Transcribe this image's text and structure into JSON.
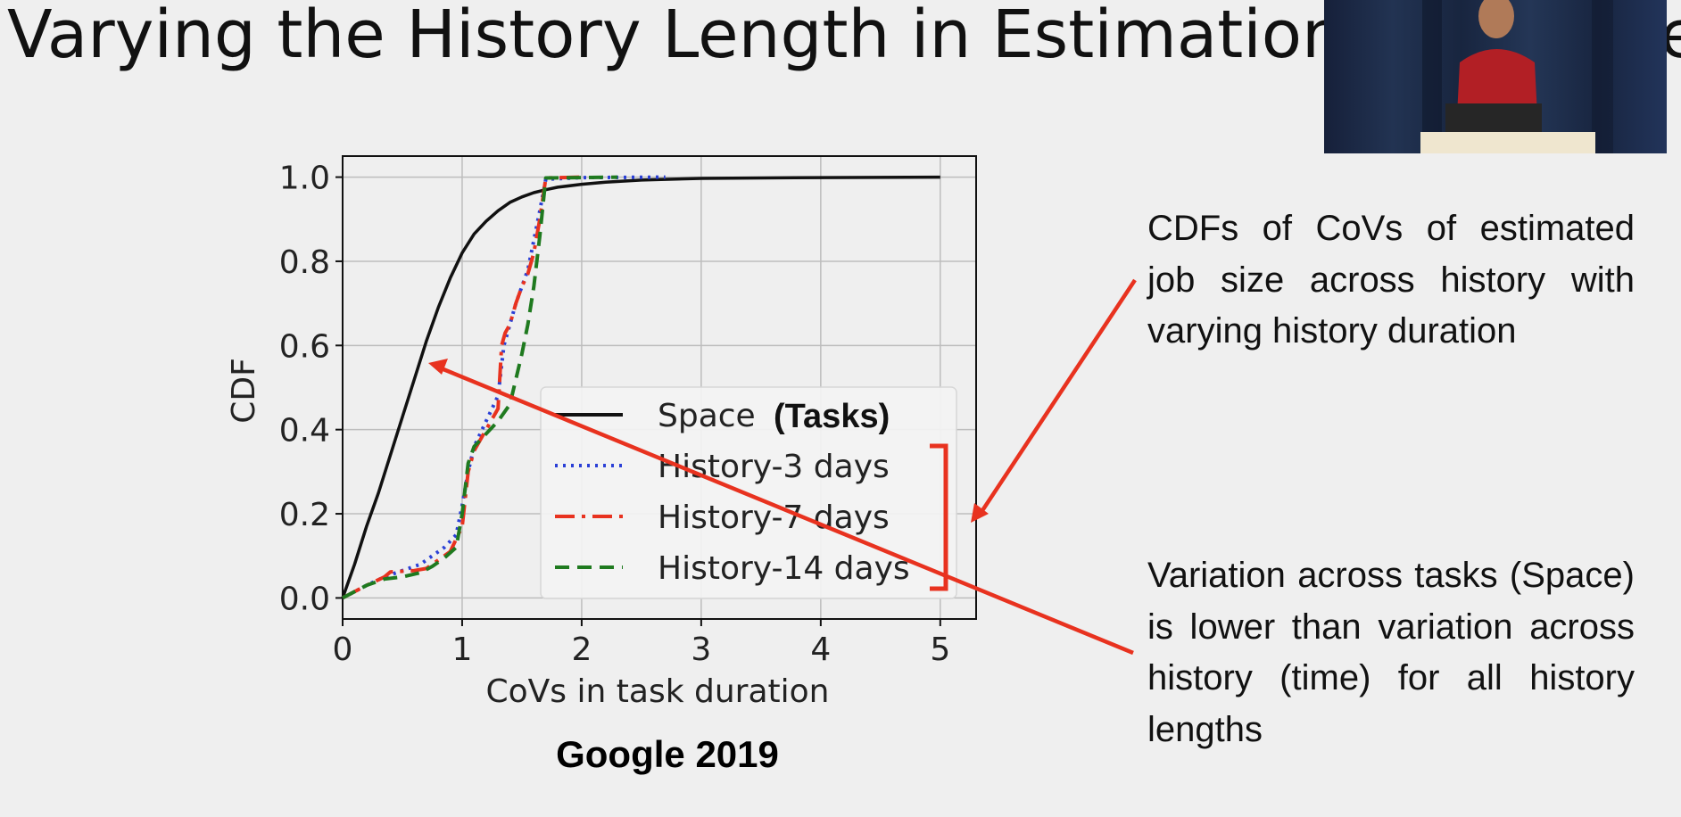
{
  "slide": {
    "title": "Varying the History Length in Estimation a",
    "title_trailing": "e",
    "caption_top": "CDFs of CoVs  of estimated job size across history with varying history duration",
    "caption_bottom": "Variation across tasks (Space) is lower than variation across history (time) for all history lengths",
    "chart_subtitle": "Google 2019",
    "annotation_color": "#e8321f",
    "background_color": "#efefef"
  },
  "chart_data": {
    "type": "line",
    "xlabel": "CoVs in task duration",
    "ylabel": "CDF",
    "xlim": [
      0,
      5.3
    ],
    "ylim": [
      -0.05,
      1.05
    ],
    "xticks": [
      0,
      1,
      2,
      3,
      4,
      5
    ],
    "yticks": [
      0.0,
      0.2,
      0.4,
      0.6,
      0.8,
      1.0
    ],
    "xtick_labels": [
      "0",
      "1",
      "2",
      "3",
      "4",
      "5"
    ],
    "ytick_labels": [
      "0.0",
      "0.2",
      "0.4",
      "0.6",
      "0.8",
      "1.0"
    ],
    "grid": true,
    "legend_position": "lower-right",
    "series": [
      {
        "name": "Space",
        "legend_suffix": "(Tasks)",
        "color": "#111111",
        "style": "solid",
        "x": [
          0,
          0.1,
          0.2,
          0.3,
          0.4,
          0.5,
          0.6,
          0.7,
          0.8,
          0.9,
          1.0,
          1.1,
          1.2,
          1.3,
          1.4,
          1.5,
          1.6,
          1.7,
          1.8,
          2.0,
          2.2,
          2.5,
          3.0,
          4.0,
          5.0
        ],
        "values": [
          0,
          0.08,
          0.17,
          0.25,
          0.34,
          0.43,
          0.52,
          0.61,
          0.69,
          0.76,
          0.82,
          0.865,
          0.895,
          0.92,
          0.94,
          0.953,
          0.963,
          0.97,
          0.976,
          0.983,
          0.988,
          0.993,
          0.997,
          0.999,
          1.0
        ]
      },
      {
        "name": "History-3 days",
        "color": "#2a3fd6",
        "style": "dotted",
        "x": [
          0,
          0.2,
          0.35,
          0.5,
          0.65,
          0.75,
          0.85,
          0.95,
          1.0,
          1.05,
          1.1,
          1.2,
          1.3,
          1.35,
          1.4,
          1.45,
          1.5,
          1.55,
          1.6,
          1.65,
          1.7,
          2.0,
          2.7
        ],
        "values": [
          0,
          0.03,
          0.05,
          0.065,
          0.08,
          0.1,
          0.12,
          0.15,
          0.22,
          0.3,
          0.36,
          0.42,
          0.48,
          0.6,
          0.65,
          0.7,
          0.74,
          0.78,
          0.85,
          0.92,
          0.995,
          0.999,
          1.0
        ]
      },
      {
        "name": "History-7 days",
        "color": "#e8321f",
        "style": "dashdot",
        "x": [
          0,
          0.2,
          0.35,
          0.4,
          0.6,
          0.7,
          0.8,
          0.9,
          1.0,
          1.05,
          1.1,
          1.2,
          1.3,
          1.33,
          1.36,
          1.4,
          1.45,
          1.5,
          1.55,
          1.6,
          1.65,
          1.7,
          2.0
        ],
        "values": [
          0,
          0.03,
          0.05,
          0.062,
          0.065,
          0.07,
          0.09,
          0.11,
          0.17,
          0.3,
          0.35,
          0.4,
          0.45,
          0.6,
          0.63,
          0.65,
          0.7,
          0.74,
          0.77,
          0.82,
          0.9,
          0.998,
          1.0
        ]
      },
      {
        "name": "History-14 days",
        "color": "#1f7a1f",
        "style": "dashed",
        "x": [
          0,
          0.2,
          0.35,
          0.5,
          0.65,
          0.75,
          0.85,
          0.95,
          1.0,
          1.05,
          1.1,
          1.2,
          1.3,
          1.4,
          1.45,
          1.5,
          1.55,
          1.6,
          1.65,
          1.7,
          2.0,
          2.3
        ],
        "values": [
          0,
          0.03,
          0.045,
          0.05,
          0.06,
          0.075,
          0.095,
          0.12,
          0.2,
          0.32,
          0.36,
          0.39,
          0.42,
          0.46,
          0.52,
          0.58,
          0.65,
          0.74,
          0.86,
          0.998,
          0.999,
          1.0
        ]
      }
    ]
  }
}
